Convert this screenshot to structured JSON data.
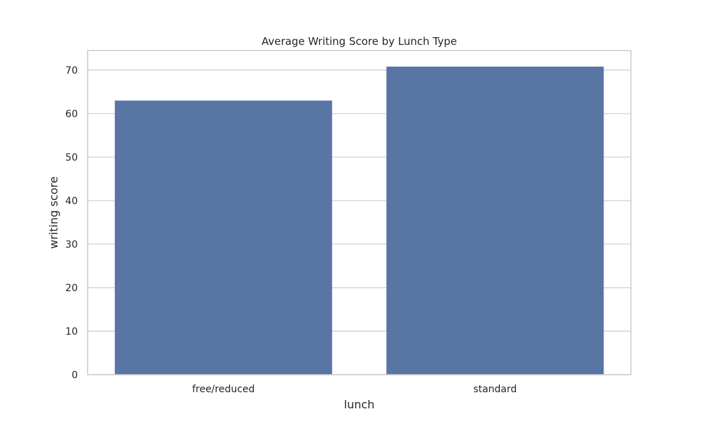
{
  "chart_data": {
    "type": "bar",
    "title": "Average Writing Score by Lunch Type",
    "xlabel": "lunch",
    "ylabel": "writing score",
    "categories": [
      "free/reduced",
      "standard"
    ],
    "values": [
      63.0,
      70.8
    ],
    "ylim": [
      0,
      74.5
    ],
    "yticks": [
      0,
      10,
      20,
      30,
      40,
      50,
      60,
      70
    ],
    "ytick_labels": [
      "0",
      "10",
      "20",
      "30",
      "40",
      "50",
      "60",
      "70"
    ],
    "grid": true,
    "legend": "none",
    "colors": {
      "bar": "#5875a4",
      "grid": "#cccccc",
      "frame": "#cccccc",
      "text": "#262626"
    }
  }
}
